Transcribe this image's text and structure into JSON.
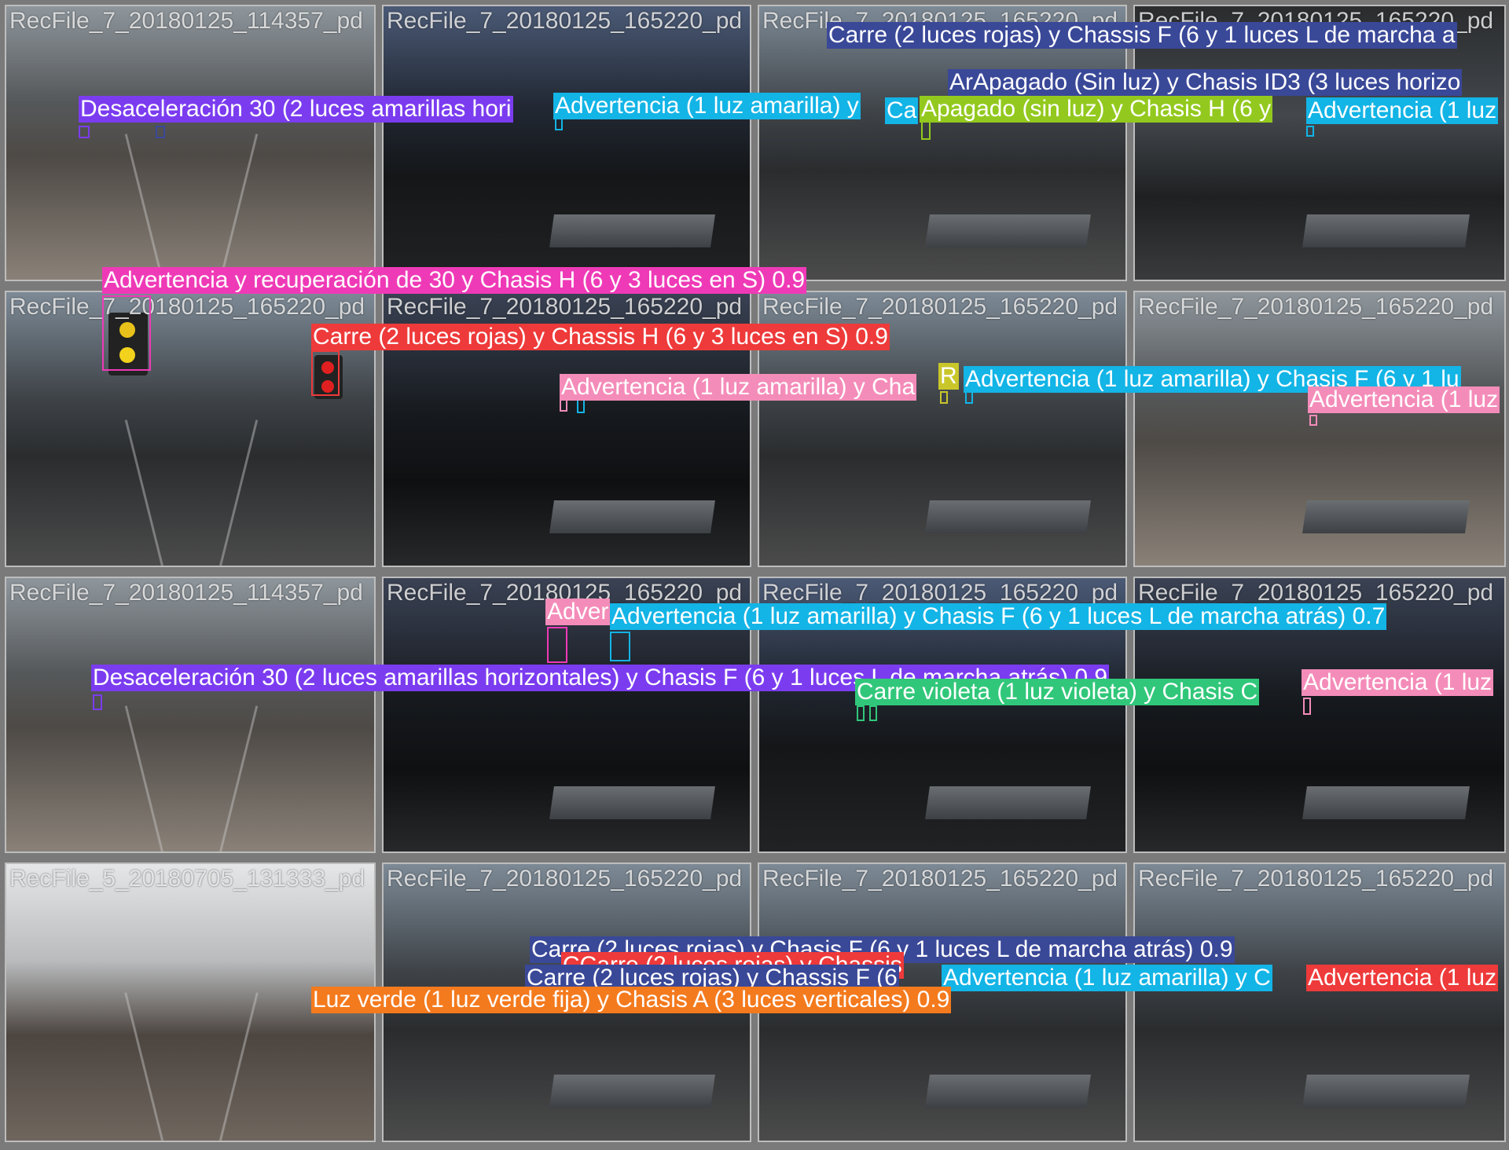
{
  "colors": {
    "purple": "#7b3cf0",
    "cyan": "#13b4e6",
    "navy": "#3a4898",
    "lime": "#93c91e",
    "pink": "#ef3ab7",
    "red": "#ee3a3a",
    "light_pink": "#f48cb9",
    "olive": "#c9c62a",
    "green": "#31c77a",
    "orange": "#f47a1e"
  },
  "tiles": [
    {
      "file_caption": "RecFile_7_20180125_114357_pd"
    },
    {
      "file_caption": "RecFile_7_20180125_165220_pd"
    },
    {
      "file_caption": "RecFile_7_20180125_165220_pd"
    },
    {
      "file_caption": "RecFile_7_20180125_165220_pd"
    },
    {
      "file_caption": "RecFile_7_20180125_165220_pd"
    },
    {
      "file_caption": "RecFile_7_20180125_165220_pd"
    },
    {
      "file_caption": "RecFile_7_20180125_165220_pd"
    },
    {
      "file_caption": "RecFile_7_20180125_165220_pd"
    },
    {
      "file_caption": "RecFile_7_20180125_114357_pd"
    },
    {
      "file_caption": "RecFile_7_20180125_165220_pd"
    },
    {
      "file_caption": "RecFile_7_20180125_165220_pd"
    },
    {
      "file_caption": "RecFile_7_20180125_165220_pd"
    },
    {
      "file_caption": "RecFile_5_20180705_131333_pd"
    },
    {
      "file_caption": "RecFile_7_20180125_165220_pd"
    },
    {
      "file_caption": "RecFile_7_20180125_165220_pd"
    },
    {
      "file_caption": "RecFile_7_20180125_165220_pd"
    }
  ],
  "labels": [
    "Desaceleración 30 (2 luces amarillas hori",
    "Advertencia (1 luz amarilla) y",
    "Carre (2 luces rojas) y Chassis F (6 y 1 luces L de marcha a",
    "ArApagado (Sin luz) y Chasis ID3 (3 luces horizo",
    "Ca",
    "Apagado (sin luz) y Chasis H (6 y",
    "Advertencia (1 luz",
    "Advertencia y recuperación de 30 y Chasis H (6 y 3 luces en S) 0.9",
    "Carre (2 luces rojas) y Chassis H (6 y 3 luces en S) 0.9",
    "Advertencia (1 luz amarilla) y Cha",
    "R",
    "Advertencia (1 luz amarilla) y Chasis F (6 y 1 lu",
    "Advertencia (1 luz",
    "Adver",
    "Advertencia (1 luz amarilla) y Chasis F (6 y 1 luces L de marcha atrás) 0.7",
    "Desaceleración 30 (2 luces amarillas horizontales) y Chasis F (6 y 1 luces L de marcha atrás) 0.9",
    "Carre violeta (1 luz violeta) y Chasis C",
    "Advertencia (1 luz",
    "Carre (2 luces rojas) y Chasis F (6 y 1 luces L de marcha atrás) 0.9",
    "CCarre (2 luces rojas) y Chassis",
    "Carre (2 luces rojas) y Chassis F (6",
    "Advertencia (1 luz amarilla) y C",
    "Advertencia (1 luz",
    "Luz verde (1 luz verde fija) y Chasis A (3 luces verticales) 0.9"
  ]
}
